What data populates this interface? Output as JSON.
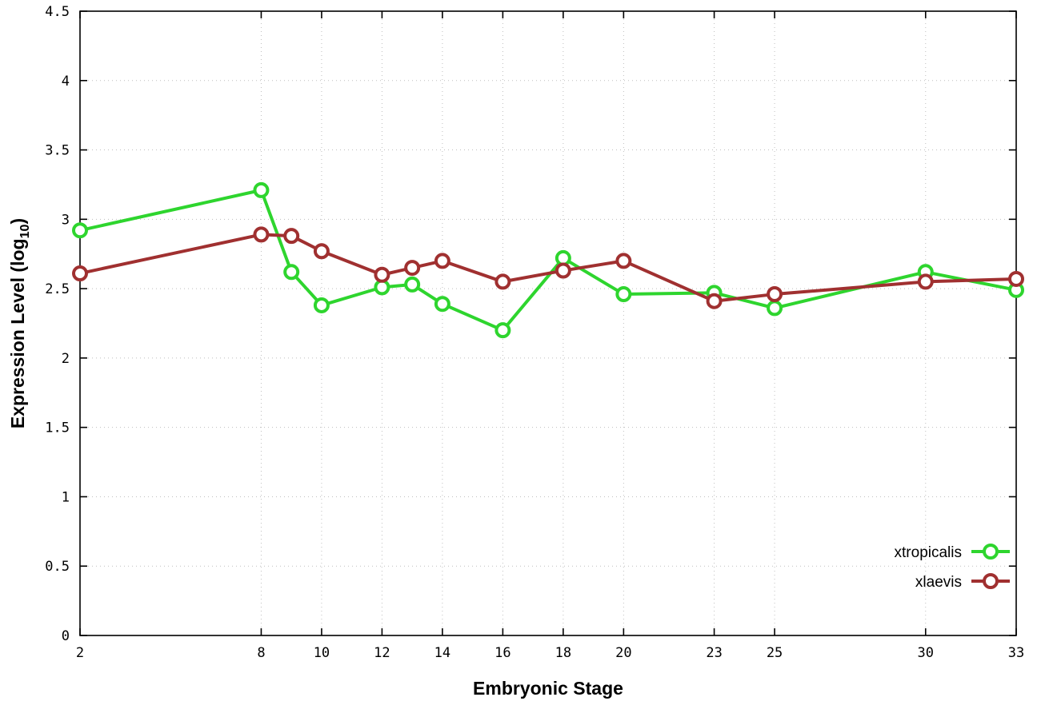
{
  "chart_data": {
    "type": "line",
    "title": "",
    "xlabel": "Embryonic Stage",
    "ylabel": "Expression Level (log10)",
    "ylabel_parts": {
      "pre": "Expression Level (log",
      "sub": "10",
      "post": ")"
    },
    "xlim": [
      2,
      33
    ],
    "ylim": [
      0,
      4.5
    ],
    "x_ticks": [
      2,
      8,
      10,
      12,
      14,
      16,
      18,
      20,
      23,
      25,
      30,
      33
    ],
    "y_ticks": [
      0,
      0.5,
      1,
      1.5,
      2,
      2.5,
      3,
      3.5,
      4,
      4.5
    ],
    "grid": true,
    "legend_position": "bottom-right",
    "x": [
      2,
      8,
      9,
      10,
      12,
      13,
      14,
      16,
      18,
      20,
      23,
      25,
      30,
      33
    ],
    "series": [
      {
        "name": "xtropicalis",
        "color": "#2ed52e",
        "marker": "open-circle",
        "values": [
          2.92,
          3.21,
          2.62,
          2.38,
          2.51,
          2.53,
          2.39,
          2.2,
          2.72,
          2.46,
          2.47,
          2.36,
          2.62,
          2.49
        ]
      },
      {
        "name": "xlaevis",
        "color": "#a03030",
        "marker": "open-circle",
        "values": [
          2.61,
          2.89,
          2.88,
          2.77,
          2.6,
          2.65,
          2.7,
          2.55,
          2.63,
          2.7,
          2.41,
          2.46,
          2.55,
          2.57
        ]
      }
    ],
    "colors": {
      "background": "#ffffff",
      "border": "#000000",
      "grid": "#bfbfbf",
      "marker_fill": "#ffffff"
    }
  }
}
